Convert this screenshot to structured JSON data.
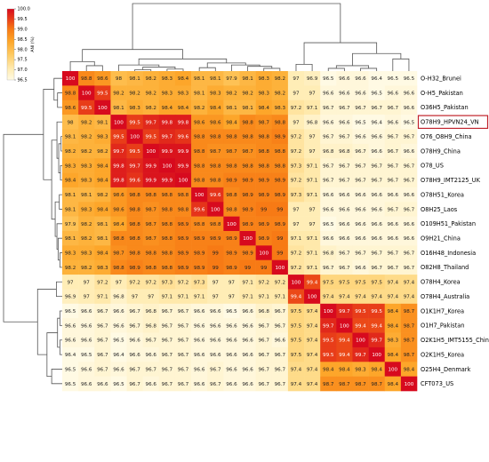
{
  "chart_data": {
    "type": "heatmap",
    "title": "",
    "row_labels": [
      "O-H32_Brunei",
      "O-H5_Pakistan",
      "O36H5_Pakistan",
      "O78H9_HPVN24_VN",
      "O76_O8H9_China",
      "O78H9_China",
      "O78_US",
      "O78H9_IMT2125_UK",
      "O78H51_Korea",
      "O8H25_Laos",
      "O109H51_Pakistan",
      "O9H21_China",
      "O16H48_Indonesia",
      "O82H8_Thailand",
      "O78H4_Korea",
      "O78H4_Australia",
      "O1K1H7_Korea",
      "O1H7_Pakistan",
      "O2K1H5_IMT5155_China",
      "O2K1H5_Korea",
      "O25H4_Denmark",
      "CFT073_US"
    ],
    "highlighted_label": "O78H9_HPVN24_VN",
    "colorbar": {
      "label": "ANI (%)",
      "min": 96.5,
      "max": 100.0,
      "ticks": [
        "100.0",
        "99.5",
        "99.0",
        "98.5",
        "98.0",
        "97.5",
        "97.0",
        "96.5"
      ]
    },
    "values": [
      [
        "100",
        "98.8",
        "98.6",
        "98",
        "98.1",
        "98.2",
        "98.3",
        "98.4",
        "98.1",
        "98.1",
        "97.9",
        "98.1",
        "98.3",
        "98.2",
        "97",
        "96.9",
        "96.5",
        "96.6",
        "96.6",
        "96.4",
        "96.5",
        "96.5"
      ],
      [
        "98.8",
        "100",
        "99.5",
        "98.2",
        "98.2",
        "98.2",
        "98.3",
        "98.3",
        "98.1",
        "98.3",
        "98.2",
        "98.2",
        "98.3",
        "98.2",
        "97",
        "97",
        "96.6",
        "96.6",
        "96.6",
        "96.5",
        "96.6",
        "96.6"
      ],
      [
        "98.6",
        "99.5",
        "100",
        "98.1",
        "98.3",
        "98.2",
        "98.4",
        "98.4",
        "98.2",
        "98.4",
        "98.1",
        "98.1",
        "98.4",
        "98.3",
        "97.2",
        "97.1",
        "96.7",
        "96.7",
        "96.7",
        "96.7",
        "96.7",
        "96.6"
      ],
      [
        "98",
        "98.2",
        "98.1",
        "100",
        "99.5",
        "99.7",
        "99.8",
        "99.8",
        "98.6",
        "98.6",
        "98.4",
        "98.8",
        "98.7",
        "98.8",
        "97",
        "96.8",
        "96.6",
        "96.6",
        "96.5",
        "96.4",
        "96.6",
        "96.5"
      ],
      [
        "98.1",
        "98.2",
        "98.3",
        "99.5",
        "100",
        "99.5",
        "99.7",
        "99.6",
        "98.8",
        "98.8",
        "98.8",
        "98.8",
        "98.8",
        "98.9",
        "97.2",
        "97",
        "96.7",
        "96.7",
        "96.6",
        "96.6",
        "96.7",
        "96.7"
      ],
      [
        "98.2",
        "98.2",
        "98.2",
        "99.7",
        "99.5",
        "100",
        "99.9",
        "99.9",
        "98.8",
        "98.7",
        "98.7",
        "98.7",
        "98.8",
        "98.8",
        "97.2",
        "97",
        "96.8",
        "96.8",
        "96.7",
        "96.6",
        "96.7",
        "96.6"
      ],
      [
        "98.3",
        "98.3",
        "98.4",
        "99.8",
        "99.7",
        "99.9",
        "100",
        "99.9",
        "98.8",
        "98.8",
        "98.8",
        "98.8",
        "98.8",
        "98.8",
        "97.3",
        "97.1",
        "96.7",
        "96.7",
        "96.7",
        "96.7",
        "96.7",
        "96.7"
      ],
      [
        "98.4",
        "98.3",
        "98.4",
        "99.8",
        "99.6",
        "99.9",
        "99.9",
        "100",
        "98.8",
        "98.8",
        "98.9",
        "98.9",
        "98.9",
        "98.9",
        "97.2",
        "97.1",
        "96.7",
        "96.7",
        "96.7",
        "96.7",
        "96.7",
        "96.7"
      ],
      [
        "98.1",
        "98.1",
        "98.2",
        "98.6",
        "98.8",
        "98.8",
        "98.8",
        "98.8",
        "100",
        "99.6",
        "98.8",
        "98.9",
        "98.9",
        "98.9",
        "97.3",
        "97.1",
        "96.6",
        "96.6",
        "96.6",
        "96.6",
        "96.6",
        "96.6"
      ],
      [
        "98.1",
        "98.3",
        "98.4",
        "98.6",
        "98.8",
        "98.7",
        "98.8",
        "98.8",
        "99.6",
        "100",
        "98.8",
        "98.9",
        "99",
        "99",
        "97",
        "97",
        "96.6",
        "96.6",
        "96.6",
        "96.6",
        "96.7",
        "96.7"
      ],
      [
        "97.9",
        "98.2",
        "98.1",
        "98.4",
        "98.8",
        "98.7",
        "98.8",
        "98.9",
        "98.8",
        "98.8",
        "100",
        "98.9",
        "98.9",
        "98.9",
        "97",
        "97",
        "96.5",
        "96.6",
        "96.6",
        "96.6",
        "96.6",
        "96.6"
      ],
      [
        "98.1",
        "98.2",
        "98.1",
        "98.8",
        "98.8",
        "98.7",
        "98.8",
        "98.9",
        "98.9",
        "98.9",
        "98.9",
        "100",
        "98.9",
        "99",
        "97.1",
        "97.1",
        "96.6",
        "96.6",
        "96.6",
        "96.6",
        "96.6",
        "96.6"
      ],
      [
        "98.3",
        "98.3",
        "98.4",
        "98.7",
        "98.8",
        "98.8",
        "98.8",
        "98.9",
        "98.9",
        "99",
        "98.9",
        "98.9",
        "100",
        "99",
        "97.2",
        "97.1",
        "96.8",
        "96.7",
        "96.7",
        "96.7",
        "96.7",
        "96.7"
      ],
      [
        "98.2",
        "98.2",
        "98.3",
        "98.8",
        "98.9",
        "98.8",
        "98.8",
        "98.9",
        "98.9",
        "99",
        "98.9",
        "99",
        "99",
        "100",
        "97.2",
        "97.1",
        "96.7",
        "96.7",
        "96.6",
        "96.7",
        "96.7",
        "96.7"
      ],
      [
        "97",
        "97",
        "97.2",
        "97",
        "97.2",
        "97.2",
        "97.3",
        "97.2",
        "97.3",
        "97",
        "97",
        "97.1",
        "97.2",
        "97.2",
        "100",
        "99.4",
        "97.5",
        "97.5",
        "97.5",
        "97.5",
        "97.4",
        "97.4"
      ],
      [
        "96.9",
        "97",
        "97.1",
        "96.8",
        "97",
        "97",
        "97.1",
        "97.1",
        "97.1",
        "97",
        "97",
        "97.1",
        "97.1",
        "97.1",
        "99.4",
        "100",
        "97.4",
        "97.4",
        "97.4",
        "97.4",
        "97.4",
        "97.4"
      ],
      [
        "96.5",
        "96.6",
        "96.7",
        "96.6",
        "96.7",
        "96.8",
        "96.7",
        "96.7",
        "96.6",
        "96.6",
        "96.5",
        "96.6",
        "96.8",
        "96.7",
        "97.5",
        "97.4",
        "100",
        "99.7",
        "99.5",
        "99.5",
        "98.4",
        "98.7"
      ],
      [
        "96.6",
        "96.6",
        "96.7",
        "96.6",
        "96.7",
        "96.8",
        "96.7",
        "96.7",
        "96.6",
        "96.6",
        "96.6",
        "96.6",
        "96.7",
        "96.7",
        "97.5",
        "97.4",
        "99.7",
        "100",
        "99.4",
        "99.4",
        "98.4",
        "98.7"
      ],
      [
        "96.6",
        "96.6",
        "96.7",
        "96.5",
        "96.6",
        "96.7",
        "96.7",
        "96.7",
        "96.6",
        "96.6",
        "96.6",
        "96.6",
        "96.7",
        "96.6",
        "97.5",
        "97.4",
        "99.5",
        "99.4",
        "100",
        "99.7",
        "98.3",
        "98.7"
      ],
      [
        "96.4",
        "96.5",
        "96.7",
        "96.4",
        "96.6",
        "96.6",
        "96.7",
        "96.7",
        "96.6",
        "96.6",
        "96.6",
        "96.6",
        "96.7",
        "96.7",
        "97.5",
        "97.4",
        "99.5",
        "99.4",
        "99.7",
        "100",
        "98.4",
        "98.7"
      ],
      [
        "96.5",
        "96.6",
        "96.7",
        "96.6",
        "96.7",
        "96.7",
        "96.7",
        "96.7",
        "96.6",
        "96.7",
        "96.6",
        "96.6",
        "96.7",
        "96.7",
        "97.4",
        "97.4",
        "98.4",
        "98.4",
        "98.3",
        "98.4",
        "100",
        "98.4"
      ],
      [
        "96.5",
        "96.6",
        "96.6",
        "96.5",
        "96.7",
        "96.6",
        "96.7",
        "96.7",
        "96.6",
        "96.7",
        "96.6",
        "96.6",
        "96.7",
        "96.7",
        "97.4",
        "97.4",
        "98.7",
        "98.7",
        "98.7",
        "98.7",
        "98.4",
        "100"
      ]
    ]
  }
}
